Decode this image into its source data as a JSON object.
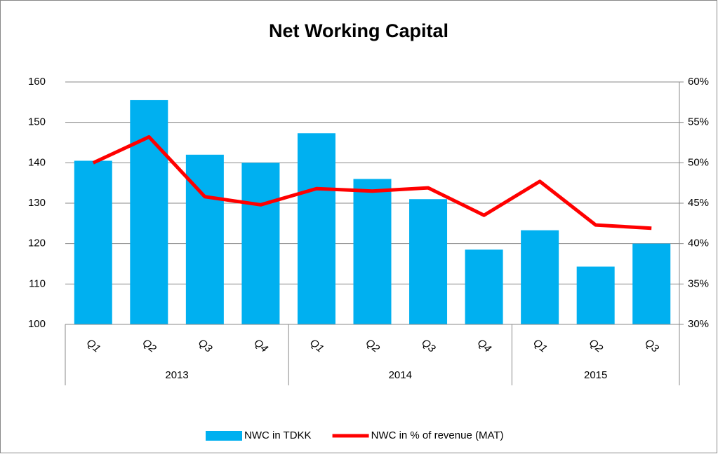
{
  "chart_data": {
    "type": "bar",
    "title": "Net Working Capital",
    "groups": [
      {
        "name": "2013",
        "categories": [
          "Q1",
          "Q2",
          "Q3",
          "Q4"
        ]
      },
      {
        "name": "2014",
        "categories": [
          "Q1",
          "Q2",
          "Q3",
          "Q4"
        ]
      },
      {
        "name": "2015",
        "categories": [
          "Q1",
          "Q2",
          "Q3"
        ]
      }
    ],
    "series": [
      {
        "name": "NWC in TDKK",
        "type": "bar",
        "color": "#00b0f0",
        "values": [
          140.5,
          155.5,
          142,
          140,
          147.3,
          136,
          131,
          118.5,
          123.3,
          114.3,
          120
        ]
      },
      {
        "name": "NWC in % of  revenue (MAT)",
        "type": "line",
        "axis": "y2",
        "color": "#ff0000",
        "values": [
          50,
          53.2,
          45.8,
          44.8,
          46.8,
          46.5,
          46.9,
          43.5,
          47.7,
          42.3,
          41.9
        ]
      }
    ],
    "ylim": [
      100,
      160
    ],
    "yticks": [
      100,
      110,
      120,
      130,
      140,
      150,
      160
    ],
    "y2lim": [
      30,
      60
    ],
    "y2ticks": [
      {
        "value": 30,
        "label": "30%"
      },
      {
        "value": 35,
        "label": "35%"
      },
      {
        "value": 40,
        "label": "40%"
      },
      {
        "value": 45,
        "label": "45%"
      },
      {
        "value": 50,
        "label": "50%"
      },
      {
        "value": 55,
        "label": "55%"
      },
      {
        "value": 60,
        "label": "60%"
      }
    ],
    "grid": true,
    "legend": "bottom"
  }
}
